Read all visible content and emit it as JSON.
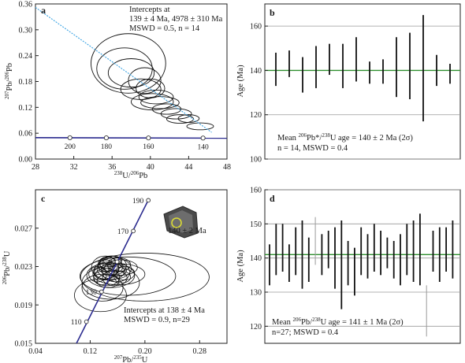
{
  "chart_data": [
    {
      "type": "scatter",
      "panel": "a",
      "title": "",
      "xlabel": "238U/206Pb",
      "ylabel": "207Pb/206Pb",
      "xlim": [
        28,
        48
      ],
      "ylim": [
        0.0,
        0.36
      ],
      "xticks": [
        "28",
        "32",
        "36",
        "40",
        "44",
        "48"
      ],
      "yticks": [
        "0.00",
        "0.06",
        "0.12",
        "0.18",
        "0.24",
        "0.30",
        "0.36"
      ],
      "annotation": [
        "Intercepts at",
        "139 ± 4 Ma, 4978 ± 310 Ma",
        "MSWD = 0.5, n = 14"
      ],
      "regression_line": {
        "x": [
          28,
          46.4
        ],
        "y": [
          0.352,
          0.062
        ]
      },
      "concordia": {
        "points": [
          {
            "x": 31.6,
            "y": 0.0495,
            "label": "200"
          },
          {
            "x": 35.4,
            "y": 0.0492,
            "label": "180"
          },
          {
            "x": 39.8,
            "y": 0.049,
            "label": "160"
          },
          {
            "x": 45.5,
            "y": 0.0488,
            "label": "140"
          }
        ]
      },
      "ellipses": [
        {
          "x": 37.7,
          "y": 0.222,
          "rx": 3.9,
          "ry": 0.069
        },
        {
          "x": 37.3,
          "y": 0.21,
          "rx": 2.9,
          "ry": 0.048
        },
        {
          "x": 38.0,
          "y": 0.2,
          "rx": 2.4,
          "ry": 0.033
        },
        {
          "x": 39.4,
          "y": 0.182,
          "rx": 1.7,
          "ry": 0.03
        },
        {
          "x": 39.0,
          "y": 0.162,
          "rx": 2.1,
          "ry": 0.024
        },
        {
          "x": 40.0,
          "y": 0.164,
          "rx": 1.5,
          "ry": 0.022
        },
        {
          "x": 40.6,
          "y": 0.144,
          "rx": 1.8,
          "ry": 0.016
        },
        {
          "x": 40.2,
          "y": 0.133,
          "rx": 2.2,
          "ry": 0.019
        },
        {
          "x": 41.0,
          "y": 0.131,
          "rx": 2.0,
          "ry": 0.014
        },
        {
          "x": 41.7,
          "y": 0.116,
          "rx": 1.5,
          "ry": 0.012
        },
        {
          "x": 42.7,
          "y": 0.105,
          "rx": 1.6,
          "ry": 0.012
        },
        {
          "x": 43.1,
          "y": 0.093,
          "rx": 1.4,
          "ry": 0.01
        },
        {
          "x": 44.0,
          "y": 0.094,
          "rx": 1.1,
          "ry": 0.009
        },
        {
          "x": 45.2,
          "y": 0.076,
          "rx": 1.4,
          "ry": 0.008
        }
      ]
    },
    {
      "type": "bar",
      "panel": "b",
      "title": "",
      "xlabel": "",
      "ylabel": "Age (Ma)",
      "ylim": [
        100,
        170
      ],
      "yticks": [
        "100",
        "120",
        "140",
        "160"
      ],
      "mean": 140,
      "caption": [
        "Mean 206Pb*/238U age = 140 ± 2 Ma  (2σ)",
        "n = 14, MSWD = 0.4"
      ],
      "error_bars": [
        {
          "low": 133,
          "high": 148
        },
        {
          "low": 137,
          "high": 149
        },
        {
          "low": 130,
          "high": 146
        },
        {
          "low": 132,
          "high": 151
        },
        {
          "low": 138,
          "high": 152
        },
        {
          "low": 132,
          "high": 152
        },
        {
          "low": 135,
          "high": 155
        },
        {
          "low": 134,
          "high": 144
        },
        {
          "low": 134,
          "high": 145
        },
        {
          "low": 128,
          "high": 155
        },
        {
          "low": 127,
          "high": 157
        },
        {
          "low": 117,
          "high": 165
        },
        {
          "low": 133,
          "high": 147
        },
        {
          "low": 134,
          "high": 143
        }
      ]
    },
    {
      "type": "scatter",
      "panel": "c",
      "title": "",
      "xlabel": "207Pb/235U",
      "ylabel": "206Pb/238U",
      "xlim": [
        0.04,
        0.32
      ],
      "ylim": [
        0.015,
        0.031
      ],
      "xticks": [
        "0.04",
        "0.12",
        "0.20",
        "0.28"
      ],
      "yticks": [
        "0.015",
        "0.019",
        "0.023",
        "0.027"
      ],
      "annotation": [
        "Intercepts at 138 ± 4 Ma",
        "MSWD = 0.9, n=29"
      ],
      "inset_label": "140 ± 2 Ma",
      "concordia": {
        "points": [
          {
            "x": 0.1145,
            "y": 0.01725,
            "label": "110"
          },
          {
            "x": 0.1366,
            "y": 0.02037,
            "label": "130"
          },
          {
            "x": 0.1593,
            "y": 0.0235,
            "label": "150"
          },
          {
            "x": 0.183,
            "y": 0.0267,
            "label": "170"
          },
          {
            "x": 0.205,
            "y": 0.0299,
            "label": "190"
          }
        ]
      },
      "ellipses": [
        {
          "x": 0.2,
          "y": 0.0219,
          "rx": 0.094,
          "ry": 0.0025
        },
        {
          "x": 0.175,
          "y": 0.022,
          "rx": 0.07,
          "ry": 0.002
        },
        {
          "x": 0.135,
          "y": 0.02,
          "rx": 0.038,
          "ry": 0.0017
        },
        {
          "x": 0.15,
          "y": 0.0213,
          "rx": 0.042,
          "ry": 0.0017
        },
        {
          "x": 0.138,
          "y": 0.0208,
          "rx": 0.03,
          "ry": 0.0014
        },
        {
          "x": 0.15,
          "y": 0.0221,
          "rx": 0.035,
          "ry": 0.0013
        },
        {
          "x": 0.162,
          "y": 0.0222,
          "rx": 0.038,
          "ry": 0.0011
        },
        {
          "x": 0.155,
          "y": 0.0228,
          "rx": 0.025,
          "ry": 0.0011
        },
        {
          "x": 0.142,
          "y": 0.0229,
          "rx": 0.02,
          "ry": 0.0012
        },
        {
          "x": 0.152,
          "y": 0.0231,
          "rx": 0.021,
          "ry": 0.001
        },
        {
          "x": 0.148,
          "y": 0.0225,
          "rx": 0.022,
          "ry": 0.0009
        },
        {
          "x": 0.158,
          "y": 0.0224,
          "rx": 0.02,
          "ry": 0.001
        },
        {
          "x": 0.144,
          "y": 0.0219,
          "rx": 0.019,
          "ry": 0.0009
        },
        {
          "x": 0.165,
          "y": 0.0229,
          "rx": 0.024,
          "ry": 0.0008
        },
        {
          "x": 0.15,
          "y": 0.0233,
          "rx": 0.016,
          "ry": 0.0008
        },
        {
          "x": 0.156,
          "y": 0.0218,
          "rx": 0.018,
          "ry": 0.0008
        },
        {
          "x": 0.14,
          "y": 0.0225,
          "rx": 0.015,
          "ry": 0.0009
        },
        {
          "x": 0.162,
          "y": 0.0232,
          "rx": 0.017,
          "ry": 0.0007
        },
        {
          "x": 0.149,
          "y": 0.0227,
          "rx": 0.013,
          "ry": 0.0007
        },
        {
          "x": 0.145,
          "y": 0.0234,
          "rx": 0.012,
          "ry": 0.0006
        },
        {
          "x": 0.16,
          "y": 0.0226,
          "rx": 0.013,
          "ry": 0.0006
        },
        {
          "x": 0.153,
          "y": 0.0236,
          "rx": 0.013,
          "ry": 0.0005
        },
        {
          "x": 0.137,
          "y": 0.0218,
          "rx": 0.012,
          "ry": 0.0007
        },
        {
          "x": 0.17,
          "y": 0.0223,
          "rx": 0.015,
          "ry": 0.0007
        },
        {
          "x": 0.146,
          "y": 0.0215,
          "rx": 0.016,
          "ry": 0.0007
        },
        {
          "x": 0.157,
          "y": 0.023,
          "rx": 0.011,
          "ry": 0.0006
        },
        {
          "x": 0.143,
          "y": 0.0231,
          "rx": 0.011,
          "ry": 0.0006
        },
        {
          "x": 0.131,
          "y": 0.0222,
          "rx": 0.013,
          "ry": 0.0008
        },
        {
          "x": 0.167,
          "y": 0.0219,
          "rx": 0.012,
          "ry": 0.0006
        }
      ]
    },
    {
      "type": "bar",
      "panel": "d",
      "title": "",
      "xlabel": "",
      "ylabel": "Age (Ma)",
      "ylim": [
        115,
        160
      ],
      "yticks": [
        "120",
        "130",
        "140",
        "150",
        "160"
      ],
      "mean": 141,
      "caption": [
        "Mean 206Pb/238U age = 141 ± 1 Ma (2σ)",
        "n=27; MSWD = 0.4"
      ],
      "error_bars": [
        {
          "low": 132,
          "high": 144,
          "used": true
        },
        {
          "low": 135,
          "high": 150,
          "used": true
        },
        {
          "low": 136,
          "high": 150,
          "used": true
        },
        {
          "low": 133,
          "high": 144,
          "used": true
        },
        {
          "low": 135,
          "high": 149,
          "used": true
        },
        {
          "low": 131,
          "high": 151,
          "used": true
        },
        {
          "low": 133,
          "high": 146,
          "used": true
        },
        {
          "low": 138,
          "high": 152,
          "used": false
        },
        {
          "low": 135,
          "high": 147,
          "used": true
        },
        {
          "low": 137,
          "high": 148,
          "used": true
        },
        {
          "low": 131,
          "high": 149,
          "used": true
        },
        {
          "low": 125,
          "high": 151,
          "used": true
        },
        {
          "low": 132,
          "high": 145,
          "used": true
        },
        {
          "low": 129,
          "high": 143,
          "used": true
        },
        {
          "low": 135,
          "high": 149,
          "used": true
        },
        {
          "low": 134,
          "high": 147,
          "used": true
        },
        {
          "low": 136,
          "high": 150,
          "used": true
        },
        {
          "low": 135,
          "high": 148,
          "used": true
        },
        {
          "low": 137,
          "high": 146,
          "used": true
        },
        {
          "low": 134,
          "high": 145,
          "used": true
        },
        {
          "low": 132,
          "high": 147,
          "used": true
        },
        {
          "low": 135,
          "high": 150,
          "used": true
        },
        {
          "low": 133,
          "high": 151,
          "used": true
        },
        {
          "low": 132,
          "high": 153,
          "used": true
        },
        {
          "low": 117,
          "high": 132,
          "used": false
        },
        {
          "low": 136,
          "high": 148,
          "used": true
        },
        {
          "low": 133,
          "high": 149,
          "used": true
        },
        {
          "low": 136,
          "high": 149,
          "used": true
        },
        {
          "low": 134,
          "high": 151,
          "used": true
        }
      ]
    }
  ]
}
